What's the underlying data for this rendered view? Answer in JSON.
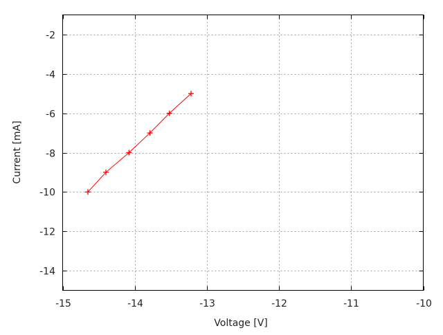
{
  "chart_data": {
    "type": "line",
    "title": "",
    "xlabel": "Voltage [V]",
    "ylabel": "Current [mA]",
    "xlim": [
      -15,
      -10
    ],
    "ylim": [
      -15,
      -1
    ],
    "xticks": [
      -15,
      -14,
      -13,
      -12,
      -11,
      -10
    ],
    "yticks": [
      -2,
      -4,
      -6,
      -8,
      -10,
      -12,
      -14
    ],
    "grid": true,
    "marker": "+",
    "series": [
      {
        "color": "#ff0000",
        "x": [
          -14.65,
          -14.4,
          -14.08,
          -13.79,
          -13.52,
          -13.22
        ],
        "y": [
          -10,
          -9,
          -8,
          -7,
          -6,
          -5
        ]
      }
    ]
  }
}
